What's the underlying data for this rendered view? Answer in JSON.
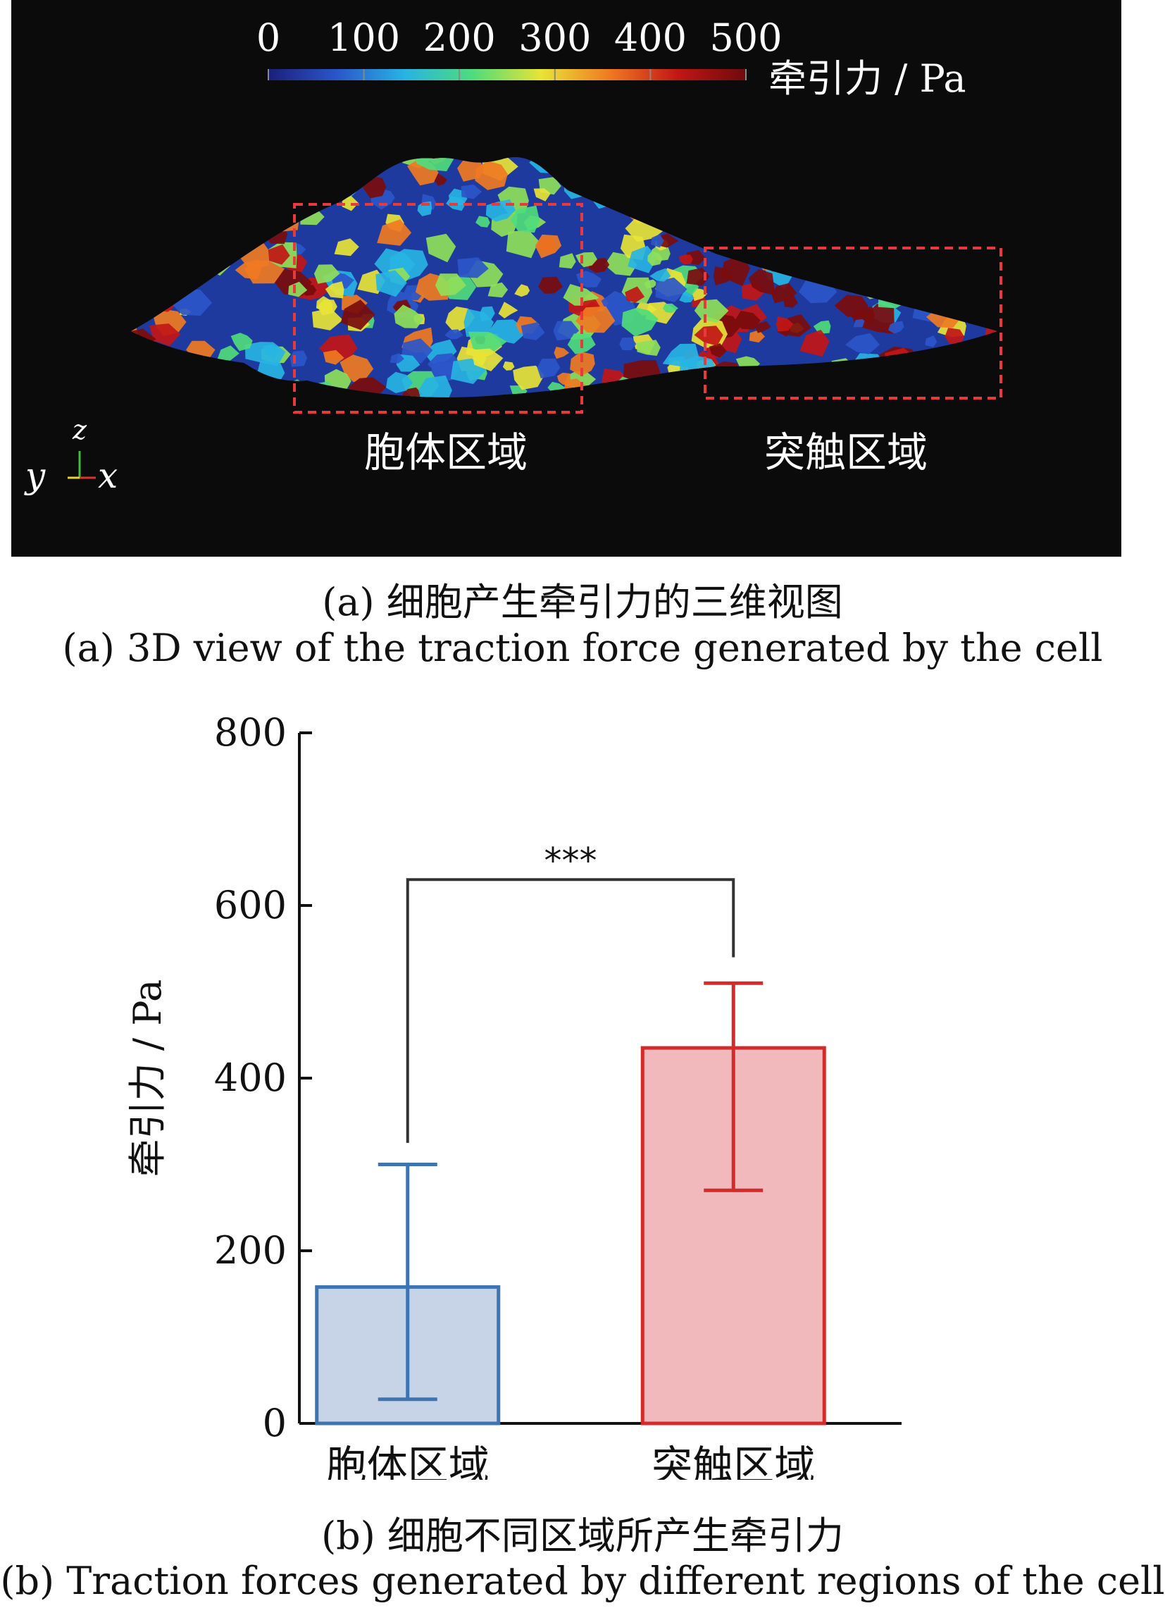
{
  "panel_a": {
    "colorbar": {
      "ticks": [
        "0",
        "100",
        "200",
        "300",
        "400",
        "500"
      ],
      "label": "牵引力 / Pa",
      "range": [
        0,
        500
      ],
      "colors": [
        "#1b1f7a",
        "#2b56c9",
        "#27b4e3",
        "#4fdc7c",
        "#e8e436",
        "#f07a22",
        "#c21616",
        "#6e0b0b"
      ]
    },
    "regions": [
      {
        "label": "胞体区域",
        "box_color": "#e83a3a"
      },
      {
        "label": "突触区域",
        "box_color": "#e83a3a"
      }
    ],
    "axes_triad": {
      "z": "z",
      "y": "y",
      "x": "x"
    },
    "caption_cn": "(a) 细胞产生牵引力的三维视图",
    "caption_en": "(a) 3D view of the traction force generated by the cell"
  },
  "chart_data": {
    "type": "bar",
    "categories": [
      "胞体区域",
      "突触区域"
    ],
    "values": [
      158,
      435
    ],
    "error_upper": [
      300,
      510
    ],
    "error_lower": [
      28,
      270
    ],
    "ylabel": "牵引力 / Pa",
    "ylim": [
      0,
      800
    ],
    "yticks": [
      "0",
      "200",
      "400",
      "600",
      "800"
    ],
    "significance": {
      "label": "***",
      "bracket_y": 630,
      "left_drop_y": 325,
      "right_drop_y": 540
    },
    "bar_fill": [
      "#c7d3e6",
      "#f2b9bd"
    ],
    "bar_stroke": [
      "#3d74b3",
      "#d52a2a"
    ],
    "grid": false
  },
  "panel_b": {
    "caption_cn": "(b) 细胞不同区域所产生牵引力",
    "caption_en": "(b) Traction forces generated by different regions of the cell"
  }
}
